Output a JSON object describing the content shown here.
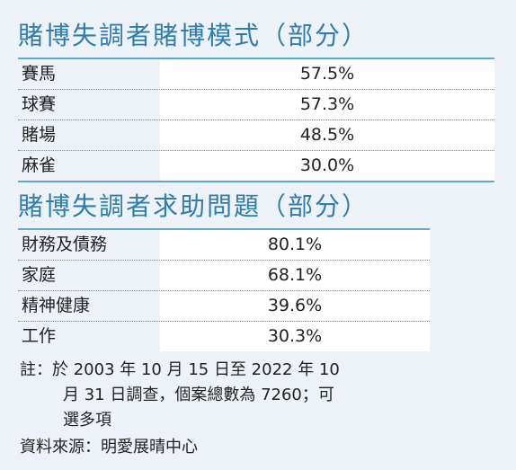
{
  "section1": {
    "title": "賭博失調者賭博模式（部分）",
    "rows": [
      {
        "label": "賽馬",
        "value": "57.5%"
      },
      {
        "label": "球賽",
        "value": "57.3%"
      },
      {
        "label": "賭場",
        "value": "48.5%"
      },
      {
        "label": "麻雀",
        "value": "30.0%"
      }
    ]
  },
  "section2": {
    "title": "賭博失調者求助問題（部分）",
    "rows": [
      {
        "label": "財務及債務",
        "value": "80.1%"
      },
      {
        "label": "家庭",
        "value": "68.1%"
      },
      {
        "label": "精神健康",
        "value": "39.6%"
      },
      {
        "label": "工作",
        "value": "30.3%"
      }
    ]
  },
  "notes": {
    "line1": "註：於 2003 年 10 月 15 日至 2022 年 10",
    "line2": "月 31 日調查，個案總數為 7260；可",
    "line3": "選多項",
    "source": "資料來源：明愛展晴中心"
  }
}
